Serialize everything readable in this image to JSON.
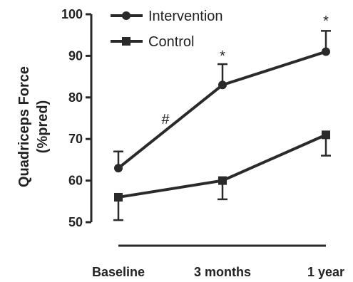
{
  "chart_data": {
    "type": "line",
    "categories": [
      "Baseline",
      "3 months",
      "1 year"
    ],
    "ylabel": [
      "Quadriceps Force",
      "(%pred)"
    ],
    "ylim": [
      50,
      100
    ],
    "yticks": [
      50,
      60,
      70,
      80,
      90,
      100
    ],
    "grid": false,
    "legend": "top-left",
    "series": [
      {
        "name": "Intervention",
        "marker": "circle",
        "values": [
          63,
          83,
          91
        ],
        "error_upper": [
          67,
          88,
          96
        ],
        "error_lower": [
          null,
          null,
          null
        ]
      },
      {
        "name": "Control",
        "marker": "square",
        "values": [
          56,
          60,
          71
        ],
        "error_upper": [
          null,
          null,
          null
        ],
        "error_lower": [
          50.5,
          55.5,
          66
        ]
      }
    ],
    "annotations": [
      {
        "text": "#",
        "between": [
          "Baseline",
          "3 months"
        ]
      },
      {
        "text": "*",
        "category": "3 months",
        "series": "Intervention"
      },
      {
        "text": "*",
        "category": "1 year",
        "series": "Intervention"
      }
    ],
    "colors": {
      "line": "#2a2a2a"
    }
  }
}
